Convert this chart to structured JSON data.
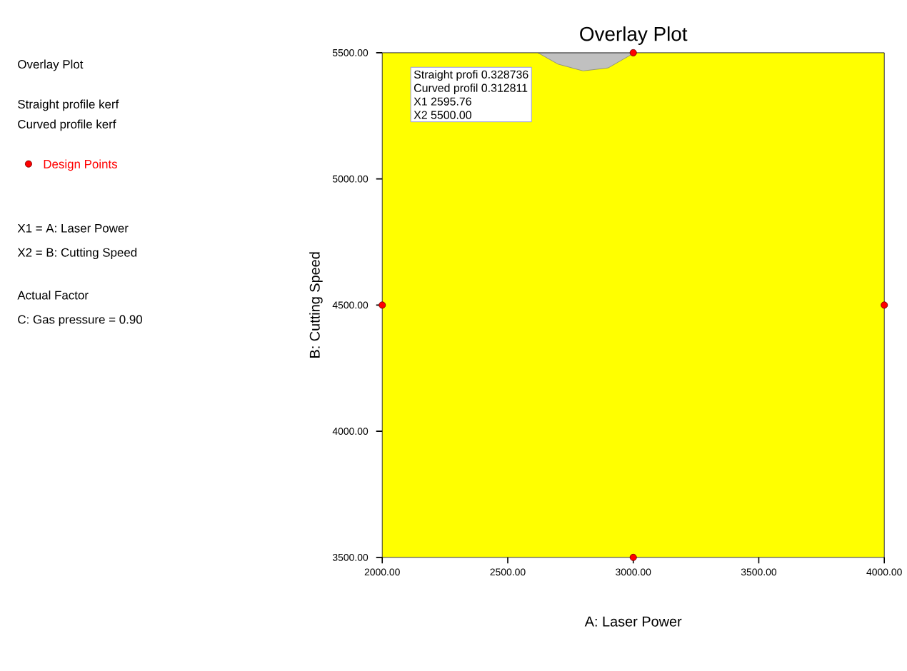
{
  "chart_data": {
    "type": "scatter",
    "title": "Overlay Plot",
    "xlabel": "A: Laser Power",
    "ylabel": "B: Cutting Speed",
    "xlim": [
      2000,
      4000
    ],
    "ylim": [
      3500,
      5500
    ],
    "xticks": [
      {
        "value": 2000,
        "label": "2000.00"
      },
      {
        "value": 2500,
        "label": "2500.00"
      },
      {
        "value": 3000,
        "label": "3000.00"
      },
      {
        "value": 3500,
        "label": "3500.00"
      },
      {
        "value": 4000,
        "label": "4000.00"
      }
    ],
    "yticks": [
      {
        "value": 3500,
        "label": "3500.00"
      },
      {
        "value": 4000,
        "label": "4000.00"
      },
      {
        "value": 4500,
        "label": "4500.00"
      },
      {
        "value": 5000,
        "label": "5000.00"
      },
      {
        "value": 5500,
        "label": "5500.00"
      }
    ],
    "bands": [
      {
        "axis": "y",
        "from": 3500,
        "to": 5500,
        "color": "#ffff00"
      }
    ],
    "series": [
      {
        "type": "area",
        "color": "#c0c0c0",
        "x": [
          2620,
          2700,
          2800,
          2900,
          3005
        ],
        "values": [
          5500,
          5455,
          5428,
          5440,
          5500
        ]
      },
      {
        "name": "Design Points",
        "color": "#ff0000",
        "marker": "circle",
        "x": [
          2000,
          3000,
          4000,
          3000
        ],
        "values": [
          4500,
          5500,
          4500,
          3500
        ]
      }
    ],
    "legend": "left",
    "annotations": [
      "Overlay Plot",
      "Straight profile kerf",
      "Curved profile kerf",
      "X1 = A: Laser Power",
      "X2 = B: Cutting Speed",
      "Actual Factor",
      "C: Gas pressure = 0.90",
      {
        "text": "Straight profi 0.328736",
        "x": 2595.76,
        "y": 5500
      },
      "Curved profil 0.312811",
      "X1 2595.76",
      "X2 5500.00"
    ]
  }
}
